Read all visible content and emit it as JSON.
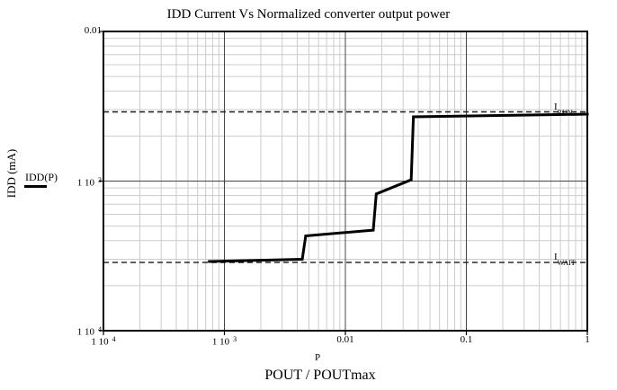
{
  "title": "IDD Current Vs Normalized converter output power",
  "legend": {
    "label": "IDD(P)"
  },
  "annotations": {
    "run": {
      "base": "I",
      "sub": "RUN"
    },
    "wait": {
      "base": "I",
      "sub": "WAIT"
    }
  },
  "chart_data": {
    "type": "line",
    "title": "IDD Current Vs Normalized converter output power",
    "xlabel": "P",
    "xlabel_secondary": "POUT / POUTmax",
    "ylabel": "IDD (mA)",
    "x_scale": "log",
    "y_scale": "log",
    "xlim": [
      0.0001,
      1
    ],
    "ylim": [
      0.0001,
      0.01
    ],
    "grid": "log minor gridlines light gray, decade majors dark",
    "legend_position": "left-outside",
    "line_color": "#000000",
    "minor_grid_color": "#cccccc",
    "major_grid_color": "#444444",
    "series": [
      {
        "name": "IDD(P)",
        "points": [
          [
            0.00075,
            0.00029
          ],
          [
            0.0044,
            0.0003
          ],
          [
            0.0047,
            0.00043
          ],
          [
            0.017,
            0.00047
          ],
          [
            0.018,
            0.00082
          ],
          [
            0.035,
            0.00102
          ],
          [
            0.0365,
            0.00269
          ],
          [
            1,
            0.0028
          ]
        ]
      }
    ],
    "ref_lines": [
      {
        "label": "I_RUN",
        "value": 0.0029
      },
      {
        "label": "I_WAIT",
        "value": 0.000286
      }
    ],
    "x_ticks": [
      {
        "value": 0.0001,
        "base": "1 10",
        "sup": "4"
      },
      {
        "value": 0.001,
        "base": "1 10",
        "sup": "3"
      },
      {
        "value": 0.01,
        "base": "0.01"
      },
      {
        "value": 0.1,
        "base": "0.1"
      },
      {
        "value": 1,
        "base": "1"
      }
    ],
    "y_ticks": [
      {
        "value": 0.01,
        "base": "0.01"
      },
      {
        "value": 0.001,
        "base": "1 10",
        "sup": "3"
      },
      {
        "value": 0.0001,
        "base": "1 10",
        "sup": "4"
      }
    ]
  }
}
